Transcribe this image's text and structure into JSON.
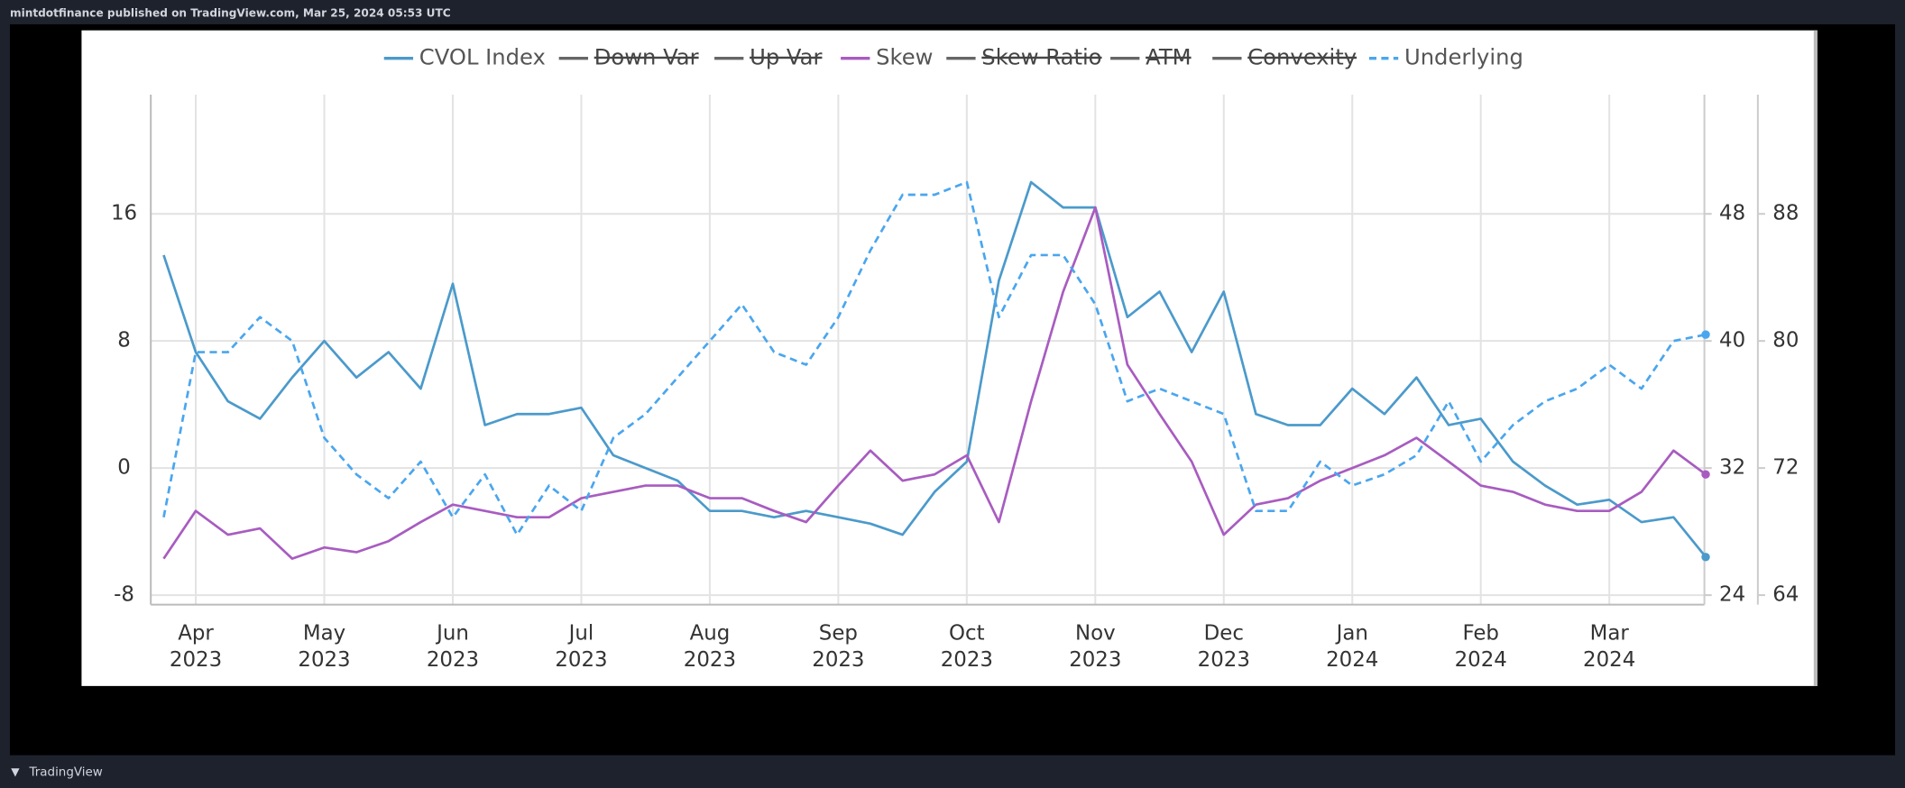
{
  "header": {
    "text": "mintdotfinance published on TradingView.com, Mar 25, 2024 05:53 UTC"
  },
  "footer": {
    "brand": "TradingView"
  },
  "chart_data": {
    "type": "line",
    "grid": true,
    "x": [
      -0.25,
      0,
      0.25,
      0.5,
      0.75,
      1,
      1.25,
      1.5,
      1.75,
      2,
      2.25,
      2.5,
      2.75,
      3,
      3.25,
      3.5,
      3.75,
      4,
      4.25,
      4.5,
      4.75,
      5,
      5.25,
      5.5,
      5.75,
      6,
      6.25,
      6.5,
      6.75,
      7,
      7.25,
      7.5,
      7.75,
      8,
      8.25,
      8.5,
      8.75,
      9,
      9.25,
      9.5,
      9.75,
      10,
      10.25,
      10.5,
      10.75,
      11,
      11.25,
      11.5,
      11.75
    ],
    "xlim": [
      -0.35,
      11.74
    ],
    "xticks": [
      {
        "value": 0,
        "label": "Apr",
        "sublabel": "2023"
      },
      {
        "value": 1,
        "label": "May",
        "sublabel": "2023"
      },
      {
        "value": 2,
        "label": "Jun",
        "sublabel": "2023"
      },
      {
        "value": 3,
        "label": "Jul",
        "sublabel": "2023"
      },
      {
        "value": 4,
        "label": "Aug",
        "sublabel": "2023"
      },
      {
        "value": 5,
        "label": "Sep",
        "sublabel": "2023"
      },
      {
        "value": 6,
        "label": "Oct",
        "sublabel": "2023"
      },
      {
        "value": 7,
        "label": "Nov",
        "sublabel": "2023"
      },
      {
        "value": 8,
        "label": "Dec",
        "sublabel": "2023"
      },
      {
        "value": 9,
        "label": "Jan",
        "sublabel": "2024"
      },
      {
        "value": 10,
        "label": "Feb",
        "sublabel": "2024"
      },
      {
        "value": 11,
        "label": "Mar",
        "sublabel": "2024"
      }
    ],
    "ylim": [
      -8.6,
      23.5
    ],
    "yticks": [
      -8,
      0,
      8,
      16
    ],
    "y2lim": [
      23.4,
      55.5
    ],
    "y2ticks": [
      24,
      32,
      40,
      48
    ],
    "y3lim": [
      63.4,
      95.5
    ],
    "y3ticks": [
      64,
      72,
      80,
      88
    ],
    "series": [
      {
        "name": "CVOL Index",
        "color": "#4b9acb",
        "style": "solid",
        "axis": "y2",
        "visible": true,
        "values": [
          45.4,
          39.3,
          36.2,
          35.1,
          37.7,
          40.0,
          37.7,
          39.3,
          37.0,
          43.6,
          34.7,
          35.4,
          35.4,
          35.8,
          32.8,
          32.0,
          31.2,
          29.3,
          29.3,
          28.9,
          29.3,
          28.9,
          28.5,
          27.8,
          30.5,
          32.4,
          43.8,
          50.0,
          48.4,
          48.4,
          41.5,
          43.1,
          39.3,
          43.1,
          35.4,
          34.7,
          34.7,
          37.0,
          35.4,
          37.7,
          34.7,
          35.1,
          32.4,
          30.9,
          29.7,
          30.0,
          28.6,
          28.9,
          26.4
        ]
      },
      {
        "name": "Down Var",
        "color": "#666666",
        "style": "solid",
        "visible": false
      },
      {
        "name": "Up Var",
        "color": "#666666",
        "style": "solid",
        "visible": false
      },
      {
        "name": "Skew",
        "color": "#a85cc0",
        "style": "solid",
        "axis": "y",
        "visible": true,
        "values": [
          -5.7,
          -2.7,
          -4.2,
          -3.8,
          -5.7,
          -5.0,
          -5.3,
          -4.6,
          -3.4,
          -2.3,
          -2.7,
          -3.1,
          -3.1,
          -1.9,
          -1.5,
          -1.1,
          -1.1,
          -1.9,
          -1.9,
          -2.7,
          -3.4,
          -1.1,
          1.1,
          -0.8,
          -0.4,
          0.8,
          -3.4,
          4.2,
          11.1,
          16.4,
          6.5,
          3.4,
          0.4,
          -4.2,
          -2.3,
          -1.9,
          -0.8,
          0.0,
          0.8,
          1.9,
          0.4,
          -1.1,
          -1.5,
          -2.3,
          -2.7,
          -2.7,
          -1.5,
          1.1,
          -0.4
        ]
      },
      {
        "name": "Skew Ratio",
        "color": "#666666",
        "style": "solid",
        "visible": false
      },
      {
        "name": "ATM",
        "color": "#666666",
        "style": "solid",
        "visible": false
      },
      {
        "name": "Convexity",
        "color": "#666666",
        "style": "solid",
        "visible": false
      },
      {
        "name": "Underlying",
        "color": "#4aa6ee",
        "style": "dashed",
        "axis": "y3",
        "visible": true,
        "values": [
          68.9,
          79.3,
          79.3,
          81.5,
          80.0,
          73.9,
          71.6,
          70.1,
          72.4,
          68.9,
          71.6,
          67.8,
          70.9,
          69.3,
          73.9,
          75.4,
          77.7,
          80.0,
          82.3,
          79.3,
          78.5,
          81.5,
          85.7,
          89.2,
          89.2,
          90.0,
          81.5,
          85.4,
          85.4,
          82.3,
          76.2,
          77.0,
          76.2,
          75.4,
          69.3,
          69.3,
          72.4,
          70.9,
          71.6,
          72.8,
          76.2,
          72.4,
          74.7,
          76.2,
          77.0,
          78.5,
          77.0,
          80.0,
          80.4
        ]
      }
    ]
  }
}
